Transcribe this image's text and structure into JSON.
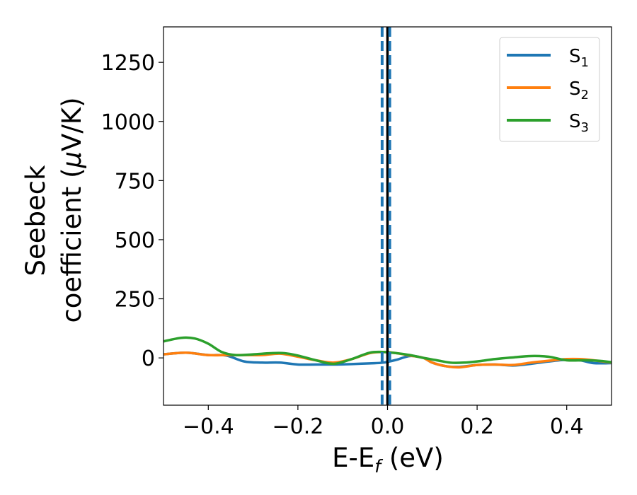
{
  "chart_data": {
    "type": "line",
    "title": "",
    "xlabel_main": "E-E",
    "xlabel_sub": "f",
    "xlabel_unit": " (eV)",
    "ylabel_line1": "Seebeck",
    "ylabel_line2_text": "coefficient  (",
    "ylabel_line2_mu": "μ",
    "ylabel_line2_unit": "V/K)",
    "xlim": [
      -0.5,
      0.5
    ],
    "ylim": [
      -200,
      1400
    ],
    "xticks": [
      -0.4,
      -0.2,
      0.0,
      0.2,
      0.4
    ],
    "xtick_labels": [
      "−0.4",
      "−0.2",
      "0.0",
      "0.2",
      "0.4"
    ],
    "yticks": [
      0,
      250,
      500,
      750,
      1000,
      1250
    ],
    "ytick_labels": [
      "0",
      "250",
      "500",
      "750",
      "1000",
      "1250"
    ],
    "grid": false,
    "legend_position": "top-right",
    "vlines": [
      {
        "x": 0.0,
        "color": "#000000",
        "style": "solid"
      },
      {
        "x": -0.012,
        "color": "#1f77b4",
        "style": "dashed"
      },
      {
        "x": 0.005,
        "color": "#1f77b4",
        "style": "dashed"
      }
    ],
    "series": [
      {
        "name_main": "S",
        "name_sub": "1",
        "color": "#1f77b4",
        "x": [
          -0.5,
          -0.45,
          -0.4,
          -0.36,
          -0.32,
          -0.28,
          -0.24,
          -0.2,
          -0.16,
          -0.12,
          -0.08,
          -0.04,
          -0.01,
          0.02,
          0.05,
          0.08,
          0.1,
          0.13,
          0.16,
          0.2,
          0.24,
          0.28,
          0.32,
          0.36,
          0.4,
          0.43,
          0.46,
          0.5
        ],
        "y": [
          15,
          22,
          12,
          10,
          -15,
          -20,
          -20,
          -28,
          -28,
          -28,
          -26,
          -23,
          -20,
          -8,
          8,
          0,
          -20,
          -35,
          -38,
          -30,
          -28,
          -32,
          -25,
          -15,
          -8,
          -10,
          -22,
          -22
        ]
      },
      {
        "name_main": "S",
        "name_sub": "2",
        "color": "#ff7f0e",
        "x": [
          -0.5,
          -0.45,
          -0.4,
          -0.36,
          -0.32,
          -0.28,
          -0.24,
          -0.2,
          -0.16,
          -0.12,
          -0.08,
          -0.04,
          -0.01,
          0.02,
          0.05,
          0.08,
          0.1,
          0.13,
          0.16,
          0.2,
          0.24,
          0.28,
          0.32,
          0.36,
          0.4,
          0.43,
          0.46,
          0.5
        ],
        "y": [
          15,
          22,
          12,
          12,
          12,
          12,
          18,
          5,
          -10,
          -20,
          -5,
          20,
          25,
          20,
          10,
          0,
          -20,
          -35,
          -40,
          -30,
          -28,
          -30,
          -20,
          -12,
          -5,
          -5,
          -10,
          -20
        ]
      },
      {
        "name_main": "S",
        "name_sub": "3",
        "color": "#2ca02c",
        "x": [
          -0.5,
          -0.46,
          -0.43,
          -0.4,
          -0.37,
          -0.34,
          -0.3,
          -0.26,
          -0.23,
          -0.2,
          -0.16,
          -0.12,
          -0.08,
          -0.04,
          -0.01,
          0.02,
          0.05,
          0.08,
          0.11,
          0.14,
          0.17,
          0.2,
          0.24,
          0.28,
          0.32,
          0.36,
          0.4,
          0.44,
          0.47,
          0.5
        ],
        "y": [
          70,
          85,
          82,
          60,
          25,
          12,
          15,
          20,
          20,
          10,
          -10,
          -25,
          -5,
          22,
          25,
          20,
          12,
          0,
          -10,
          -20,
          -20,
          -15,
          -5,
          2,
          8,
          5,
          -10,
          -10,
          -12,
          -18
        ]
      }
    ]
  }
}
